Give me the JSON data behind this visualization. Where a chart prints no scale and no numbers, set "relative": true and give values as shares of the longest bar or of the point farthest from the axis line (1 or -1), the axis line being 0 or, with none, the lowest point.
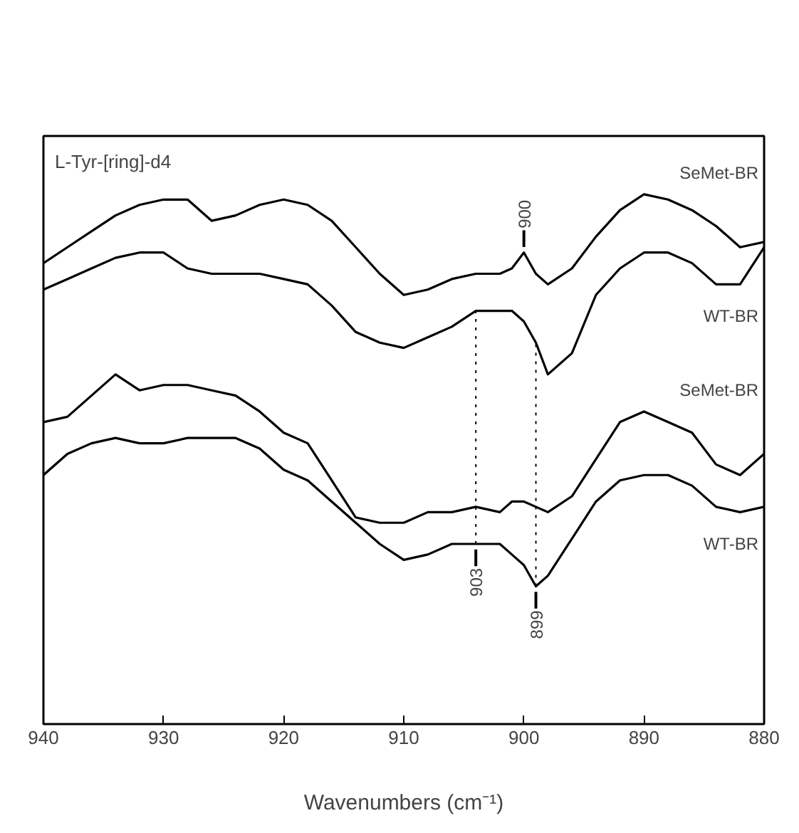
{
  "chart_data": {
    "type": "line",
    "relative": true,
    "xlabel": "Wavenumbers (cm⁻¹)",
    "x": [
      940,
      938,
      936,
      934,
      932,
      930,
      928,
      926,
      924,
      922,
      920,
      918,
      916,
      914,
      912,
      910,
      908,
      906,
      904,
      902,
      901,
      900,
      899,
      898,
      896,
      894,
      892,
      890,
      888,
      886,
      884,
      882,
      880
    ],
    "xlim": [
      940,
      880
    ],
    "xticks": [
      940,
      930,
      920,
      910,
      900,
      890,
      880
    ],
    "grid": false,
    "line_style": "solid",
    "marker": "none",
    "series": [
      {
        "name": "SeMet-BR",
        "color": "#000000",
        "values": [
          0.87,
          0.9,
          0.93,
          0.96,
          0.98,
          0.99,
          0.99,
          0.95,
          0.96,
          0.98,
          0.99,
          0.98,
          0.95,
          0.9,
          0.85,
          0.81,
          0.82,
          0.84,
          0.85,
          0.85,
          0.86,
          0.89,
          0.85,
          0.83,
          0.86,
          0.92,
          0.97,
          1.0,
          0.99,
          0.97,
          0.94,
          0.9,
          0.91
        ]
      },
      {
        "name": "WT-BR",
        "color": "#000000",
        "values": [
          0.82,
          0.84,
          0.86,
          0.88,
          0.89,
          0.89,
          0.86,
          0.85,
          0.85,
          0.85,
          0.84,
          0.83,
          0.79,
          0.74,
          0.72,
          0.71,
          0.73,
          0.75,
          0.78,
          0.78,
          0.78,
          0.76,
          0.72,
          0.66,
          0.7,
          0.81,
          0.86,
          0.89,
          0.89,
          0.87,
          0.83,
          0.83,
          0.9
        ]
      },
      {
        "name": "SeMet-BR",
        "color": "#000000",
        "values": [
          0.57,
          0.58,
          0.62,
          0.66,
          0.63,
          0.64,
          0.64,
          0.63,
          0.62,
          0.59,
          0.55,
          0.53,
          0.46,
          0.39,
          0.38,
          0.38,
          0.4,
          0.4,
          0.41,
          0.4,
          0.42,
          0.42,
          0.41,
          0.4,
          0.43,
          0.5,
          0.57,
          0.59,
          0.57,
          0.55,
          0.49,
          0.47,
          0.51
        ]
      },
      {
        "name": "WT-BR",
        "color": "#000000",
        "values": [
          0.47,
          0.51,
          0.53,
          0.54,
          0.53,
          0.53,
          0.54,
          0.54,
          0.54,
          0.52,
          0.48,
          0.46,
          0.42,
          0.38,
          0.34,
          0.31,
          0.32,
          0.34,
          0.34,
          0.34,
          0.32,
          0.3,
          0.26,
          0.28,
          0.35,
          0.42,
          0.46,
          0.47,
          0.47,
          0.45,
          0.41,
          0.4,
          0.41
        ]
      }
    ],
    "ref_lines": [
      {
        "axis": "x",
        "value": 904,
        "line_style": "dotted"
      },
      {
        "axis": "x",
        "value": 899,
        "line_style": "dotted"
      }
    ],
    "annotations": [
      "L-Tyr-[ring]-d4",
      {
        "text": "900",
        "x": 900,
        "y": 0.89
      },
      {
        "text": "903",
        "x": 904,
        "y": 0.34
      },
      {
        "text": "899",
        "x": 899,
        "y": 0.26
      }
    ]
  }
}
